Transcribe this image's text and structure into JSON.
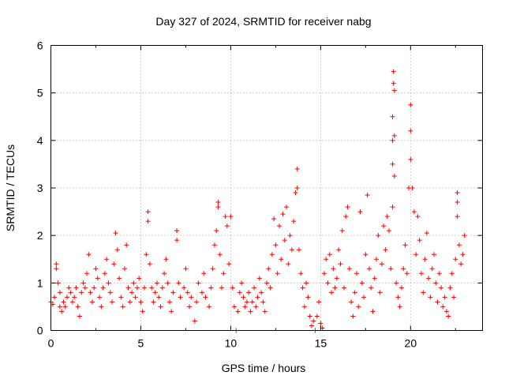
{
  "chart_data": {
    "type": "scatter",
    "title": "Day 327 of 2024, SRMTID for receiver nabg",
    "xlabel": "GPS time / hours",
    "ylabel": "SRMTID / TECUs",
    "xlim": [
      0,
      24
    ],
    "ylim": [
      0,
      6
    ],
    "xticks": [
      0,
      5,
      10,
      15,
      20
    ],
    "yticks": [
      0,
      1,
      2,
      3,
      4,
      5,
      6
    ],
    "xtick_labels": [
      "0",
      "5",
      "10",
      "15",
      "20"
    ],
    "ytick_labels": [
      "0",
      "1",
      "2",
      "3",
      "4",
      "5",
      "6"
    ],
    "grid": true,
    "marker": "plus",
    "color": "#ff0000",
    "series": [
      {
        "name": "SRMTID",
        "points": [
          [
            0.0,
            0.6
          ],
          [
            0.1,
            0.55
          ],
          [
            0.2,
            0.7
          ],
          [
            0.3,
            1.4
          ],
          [
            0.3,
            1.3
          ],
          [
            0.4,
            1.0
          ],
          [
            0.5,
            0.8
          ],
          [
            0.5,
            0.5
          ],
          [
            0.6,
            0.4
          ],
          [
            0.7,
            0.6
          ],
          [
            0.8,
            0.5
          ],
          [
            0.9,
            0.7
          ],
          [
            1.0,
            0.9
          ],
          [
            1.1,
            0.8
          ],
          [
            1.2,
            0.6
          ],
          [
            1.3,
            0.7
          ],
          [
            1.4,
            0.9
          ],
          [
            1.5,
            0.5
          ],
          [
            1.6,
            0.3
          ],
          [
            1.7,
            0.8
          ],
          [
            1.8,
            1.0
          ],
          [
            1.9,
            0.9
          ],
          [
            2.0,
            1.2
          ],
          [
            2.1,
            1.6
          ],
          [
            2.2,
            0.8
          ],
          [
            2.3,
            0.6
          ],
          [
            2.4,
            0.9
          ],
          [
            2.5,
            1.3
          ],
          [
            2.6,
            1.1
          ],
          [
            2.7,
            0.7
          ],
          [
            2.8,
            0.5
          ],
          [
            2.9,
            0.9
          ],
          [
            3.0,
            1.2
          ],
          [
            3.1,
            1.5
          ],
          [
            3.2,
            1.0
          ],
          [
            3.3,
            0.8
          ],
          [
            3.4,
            0.6
          ],
          [
            3.5,
            1.4
          ],
          [
            3.6,
            2.05
          ],
          [
            3.7,
            1.7
          ],
          [
            3.8,
            1.1
          ],
          [
            3.9,
            0.7
          ],
          [
            4.0,
            0.5
          ],
          [
            4.1,
            1.3
          ],
          [
            4.2,
            1.8
          ],
          [
            4.3,
            0.9
          ],
          [
            4.4,
            0.6
          ],
          [
            4.5,
            0.8
          ],
          [
            4.6,
            1.0
          ],
          [
            4.7,
            0.7
          ],
          [
            4.8,
            0.9
          ],
          [
            4.9,
            1.1
          ],
          [
            5.0,
            0.6
          ],
          [
            5.1,
            0.4
          ],
          [
            5.2,
            0.9
          ],
          [
            5.3,
            1.6
          ],
          [
            5.4,
            2.5
          ],
          [
            5.4,
            2.3
          ],
          [
            5.5,
            1.4
          ],
          [
            5.6,
            0.9
          ],
          [
            5.7,
            0.6
          ],
          [
            5.8,
            0.8
          ],
          [
            5.9,
            1.0
          ],
          [
            6.0,
            0.7
          ],
          [
            6.1,
            0.5
          ],
          [
            6.2,
            0.9
          ],
          [
            6.3,
            1.2
          ],
          [
            6.4,
            1.5
          ],
          [
            6.5,
            1.0
          ],
          [
            6.6,
            0.6
          ],
          [
            6.7,
            0.4
          ],
          [
            6.8,
            0.8
          ],
          [
            7.0,
            2.1
          ],
          [
            7.0,
            1.9
          ],
          [
            7.1,
            1.0
          ],
          [
            7.2,
            0.7
          ],
          [
            7.4,
            0.9
          ],
          [
            7.5,
            1.3
          ],
          [
            7.6,
            0.8
          ],
          [
            7.7,
            0.5
          ],
          [
            7.8,
            0.7
          ],
          [
            8.0,
            0.2
          ],
          [
            8.1,
            0.6
          ],
          [
            8.2,
            1.0
          ],
          [
            8.4,
            0.8
          ],
          [
            8.5,
            1.2
          ],
          [
            8.6,
            0.7
          ],
          [
            8.8,
            0.5
          ],
          [
            8.9,
            0.9
          ],
          [
            9.0,
            1.3
          ],
          [
            9.1,
            1.8
          ],
          [
            9.2,
            2.1
          ],
          [
            9.3,
            2.6
          ],
          [
            9.3,
            2.7
          ],
          [
            9.4,
            1.6
          ],
          [
            9.5,
            0.9
          ],
          [
            9.6,
            1.2
          ],
          [
            9.7,
            2.4
          ],
          [
            9.8,
            2.2
          ],
          [
            9.9,
            1.4
          ],
          [
            10.0,
            2.4
          ],
          [
            10.1,
            0.9
          ],
          [
            10.2,
            0.5
          ],
          [
            10.3,
            0.0
          ],
          [
            10.4,
            0.4
          ],
          [
            10.5,
            0.8
          ],
          [
            10.6,
            1.0
          ],
          [
            10.7,
            0.7
          ],
          [
            10.8,
            0.5
          ],
          [
            10.9,
            0.6
          ],
          [
            11.0,
            0.8
          ],
          [
            11.1,
            0.4
          ],
          [
            11.2,
            0.6
          ],
          [
            11.3,
            0.9
          ],
          [
            11.4,
            0.5
          ],
          [
            11.5,
            0.7
          ],
          [
            11.6,
            1.1
          ],
          [
            11.7,
            0.8
          ],
          [
            11.8,
            0.6
          ],
          [
            11.9,
            0.4
          ],
          [
            12.0,
            1.0
          ],
          [
            12.1,
            1.3
          ],
          [
            12.2,
            0.9
          ],
          [
            12.3,
            1.6
          ],
          [
            12.4,
            2.35
          ],
          [
            12.5,
            1.8
          ],
          [
            12.6,
            1.2
          ],
          [
            12.7,
            2.2
          ],
          [
            12.8,
            1.5
          ],
          [
            12.9,
            2.45
          ],
          [
            13.0,
            1.9
          ],
          [
            13.1,
            2.6
          ],
          [
            13.2,
            1.4
          ],
          [
            13.3,
            2.0
          ],
          [
            13.4,
            1.7
          ],
          [
            13.5,
            2.3
          ],
          [
            13.6,
            2.9
          ],
          [
            13.7,
            3.4
          ],
          [
            13.7,
            3.0
          ],
          [
            13.8,
            1.7
          ],
          [
            13.9,
            1.2
          ],
          [
            14.0,
            0.9
          ],
          [
            14.1,
            0.5
          ],
          [
            14.2,
            1.0
          ],
          [
            14.3,
            0.7
          ],
          [
            14.4,
            0.3
          ],
          [
            14.5,
            0.1
          ],
          [
            14.6,
            0.2
          ],
          [
            14.7,
            0.0
          ],
          [
            14.8,
            0.3
          ],
          [
            14.9,
            0.6
          ],
          [
            15.0,
            0.15
          ],
          [
            15.1,
            0.05
          ],
          [
            15.2,
            1.2
          ],
          [
            15.3,
            1.5
          ],
          [
            15.4,
            1.0
          ],
          [
            15.5,
            1.6
          ],
          [
            15.6,
            0.8
          ],
          [
            15.7,
            1.3
          ],
          [
            15.8,
            0.9
          ],
          [
            15.9,
            1.1
          ],
          [
            16.0,
            1.7
          ],
          [
            16.1,
            1.4
          ],
          [
            16.2,
            2.1
          ],
          [
            16.3,
            0.9
          ],
          [
            16.4,
            2.4
          ],
          [
            16.5,
            2.6
          ],
          [
            16.6,
            1.3
          ],
          [
            16.7,
            0.6
          ],
          [
            16.8,
            0.3
          ],
          [
            16.9,
            0.8
          ],
          [
            17.0,
            1.2
          ],
          [
            17.1,
            0.5
          ],
          [
            17.2,
            2.5
          ],
          [
            17.3,
            1.0
          ],
          [
            17.4,
            0.7
          ],
          [
            17.5,
            1.6
          ],
          [
            17.6,
            2.85
          ],
          [
            17.7,
            1.3
          ],
          [
            17.8,
            0.9
          ],
          [
            17.9,
            0.4
          ],
          [
            18.0,
            1.1
          ],
          [
            18.1,
            1.5
          ],
          [
            18.2,
            2.0
          ],
          [
            18.3,
            0.8
          ],
          [
            18.4,
            1.4
          ],
          [
            18.5,
            2.2
          ],
          [
            18.6,
            1.7
          ],
          [
            18.7,
            2.4
          ],
          [
            18.8,
            2.1
          ],
          [
            18.9,
            1.3
          ],
          [
            19.0,
            2.6
          ],
          [
            19.0,
            3.5
          ],
          [
            19.0,
            4.0
          ],
          [
            19.0,
            4.5
          ],
          [
            19.05,
            5.45
          ],
          [
            19.05,
            5.2
          ],
          [
            19.1,
            5.05
          ],
          [
            19.1,
            4.1
          ],
          [
            19.1,
            3.25
          ],
          [
            19.2,
            1.0
          ],
          [
            19.3,
            0.7
          ],
          [
            19.4,
            0.5
          ],
          [
            19.5,
            0.9
          ],
          [
            19.6,
            1.3
          ],
          [
            19.7,
            1.8
          ],
          [
            19.8,
            1.2
          ],
          [
            19.9,
            3.0
          ],
          [
            20.0,
            3.6
          ],
          [
            20.0,
            4.2
          ],
          [
            20.0,
            4.75
          ],
          [
            20.1,
            3.0
          ],
          [
            20.2,
            2.5
          ],
          [
            20.3,
            1.6
          ],
          [
            20.4,
            2.4
          ],
          [
            20.5,
            1.9
          ],
          [
            20.6,
            1.2
          ],
          [
            20.7,
            0.8
          ],
          [
            20.8,
            1.5
          ],
          [
            20.9,
            2.05
          ],
          [
            21.0,
            1.1
          ],
          [
            21.1,
            0.7
          ],
          [
            21.2,
            1.3
          ],
          [
            21.3,
            1.6
          ],
          [
            21.4,
            1.0
          ],
          [
            21.5,
            0.6
          ],
          [
            21.6,
            1.2
          ],
          [
            21.7,
            0.9
          ],
          [
            21.8,
            0.5
          ],
          [
            21.9,
            0.7
          ],
          [
            22.0,
            0.4
          ],
          [
            22.1,
            0.3
          ],
          [
            22.2,
            0.9
          ],
          [
            22.3,
            1.2
          ],
          [
            22.4,
            0.7
          ],
          [
            22.5,
            1.5
          ],
          [
            22.6,
            2.9
          ],
          [
            22.6,
            2.7
          ],
          [
            22.6,
            2.4
          ],
          [
            22.7,
            1.8
          ],
          [
            22.8,
            1.4
          ],
          [
            22.9,
            1.6
          ],
          [
            23.0,
            2.0
          ]
        ]
      }
    ]
  }
}
